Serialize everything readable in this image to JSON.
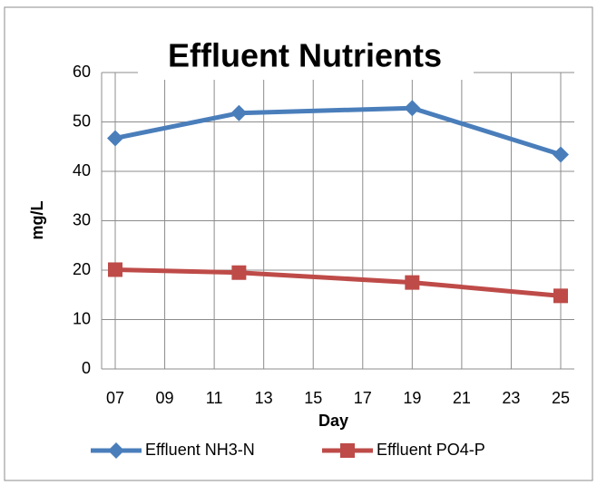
{
  "chart_data": {
    "type": "line",
    "title": "Effluent Nutrients",
    "x_label": "Day",
    "y_label": "mg/L",
    "x": [
      7,
      12,
      19,
      25
    ],
    "series": [
      {
        "name": "Effluent NH3-N",
        "color": "#4a7ebb",
        "marker": "diamond",
        "values": [
          46.7,
          51.8,
          52.8,
          43.4
        ]
      },
      {
        "name": "Effluent PO4-P",
        "color": "#be4b48",
        "marker": "square",
        "values": [
          20.1,
          19.5,
          17.5,
          14.8
        ]
      }
    ],
    "xlim": [
      6.45,
      25.55
    ],
    "xticks": [
      {
        "value": 7,
        "label": "07"
      },
      {
        "value": 9,
        "label": "09"
      },
      11,
      13,
      15,
      17,
      19,
      21,
      23,
      25
    ],
    "ylim": [
      0,
      60
    ],
    "yticks": [
      0,
      10,
      20,
      30,
      40,
      50,
      60
    ],
    "grid": true,
    "legend": "bottom"
  }
}
